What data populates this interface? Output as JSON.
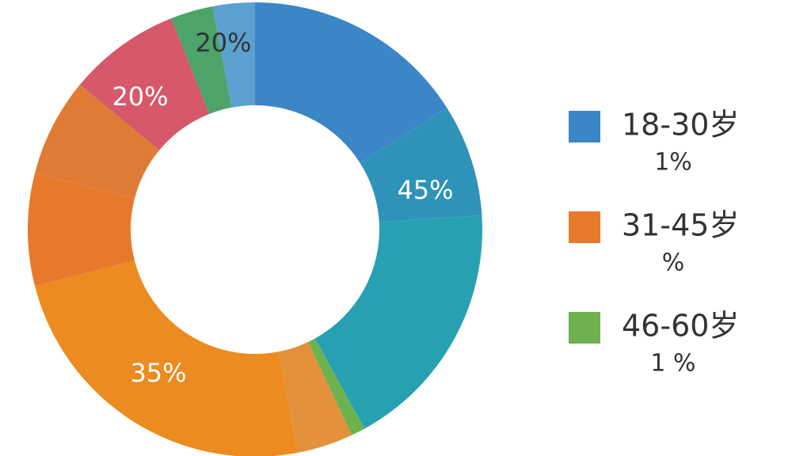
{
  "chart_data": {
    "type": "pie",
    "values": [
      16,
      8,
      18,
      1,
      4,
      24,
      8,
      7,
      8,
      3,
      3
    ],
    "colors": [
      "#3a86c6",
      "#2f93b9",
      "#27a1b1",
      "#6db24e",
      "#e4913c",
      "#ec8b1f",
      "#e8792b",
      "#e07b36",
      "#d5596a",
      "#4ca46b",
      "#5ba1cf"
    ],
    "annotations": [
      "45%",
      "35%",
      "20%",
      "20%"
    ],
    "legend": [
      {
        "label": "18-30岁",
        "sublabel": "1%",
        "color": "#3a86c6"
      },
      {
        "label": "31-45岁",
        "sublabel": "%",
        "color": "#e8792b"
      },
      {
        "label": "46-60岁",
        "sublabel": "1 %",
        "color": "#6db24e"
      }
    ]
  }
}
